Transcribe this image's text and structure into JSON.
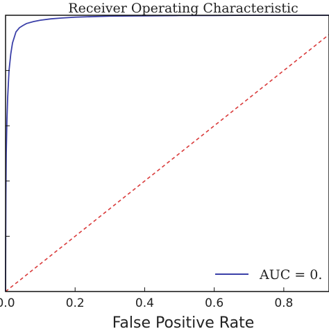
{
  "chart_data": {
    "type": "line",
    "title": "Receiver Operating Characteristic",
    "xlabel": "False Positive Rate",
    "ylabel": "",
    "xlim": [
      0,
      0.93
    ],
    "ylim": [
      0,
      1.0
    ],
    "x_ticks": [
      0.0,
      0.2,
      0.4,
      0.6,
      0.8
    ],
    "x_tick_labels": [
      "0.0",
      "0.2",
      "0.4",
      "0.6",
      "0.8"
    ],
    "y_ticks": [
      0.2,
      0.4,
      0.6,
      0.8,
      1.0
    ],
    "grid": false,
    "legend_position": "bottom-right",
    "series": [
      {
        "name": "AUC = 0.",
        "color": "#3a3fa8",
        "style": "solid",
        "x": [
          0.0,
          0.0005,
          0.001,
          0.002,
          0.004,
          0.006,
          0.008,
          0.01,
          0.015,
          0.02,
          0.025,
          0.03,
          0.04,
          0.05,
          0.06,
          0.08,
          0.1,
          0.13,
          0.16,
          0.2,
          0.25,
          0.3,
          0.4,
          0.5,
          0.6,
          0.7,
          0.8,
          0.93
        ],
        "y": [
          0.0,
          0.2,
          0.35,
          0.5,
          0.62,
          0.7,
          0.75,
          0.8,
          0.86,
          0.9,
          0.92,
          0.94,
          0.955,
          0.963,
          0.97,
          0.977,
          0.982,
          0.987,
          0.99,
          0.993,
          0.995,
          0.997,
          0.998,
          0.999,
          0.999,
          1.0,
          1.0,
          1.0
        ]
      },
      {
        "color": "#d93a3a",
        "style": "dashed",
        "x": [
          0.0,
          0.93
        ],
        "y": [
          0.0,
          0.93
        ]
      }
    ]
  }
}
